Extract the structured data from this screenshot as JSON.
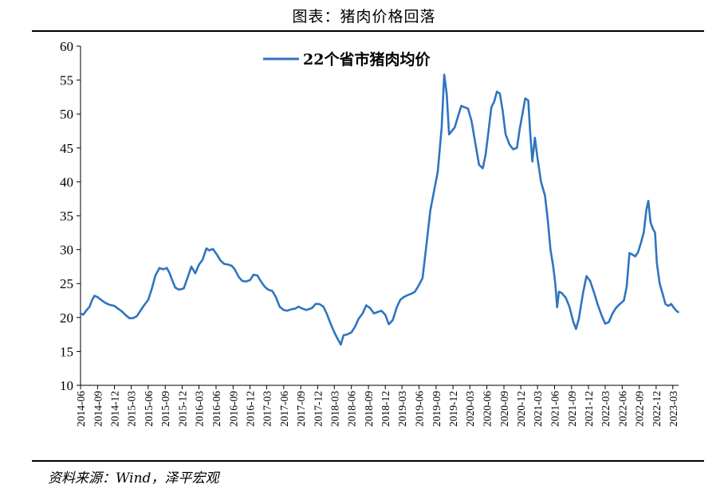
{
  "header": {
    "title": "图表：猪肉价格回落"
  },
  "footer": {
    "source": "资料来源：Wind，泽平宏观"
  },
  "chart_data": {
    "type": "line",
    "title": "",
    "xlabel": "",
    "ylabel": "",
    "ylim": [
      10,
      60
    ],
    "yticks": [
      10,
      15,
      20,
      25,
      30,
      35,
      40,
      45,
      50,
      55,
      60
    ],
    "xlim": [
      "2014-06",
      "2023-04"
    ],
    "xticks": [
      "2014-06",
      "2014-09",
      "2014-12",
      "2015-03",
      "2015-06",
      "2015-09",
      "2015-12",
      "2016-03",
      "2016-06",
      "2016-09",
      "2016-12",
      "2017-03",
      "2017-06",
      "2017-09",
      "2017-12",
      "2018-03",
      "2018-06",
      "2018-09",
      "2018-12",
      "2019-03",
      "2019-06",
      "2019-09",
      "2019-12",
      "2020-03",
      "2020-06",
      "2020-09",
      "2020-12",
      "2021-03",
      "2021-06",
      "2021-09",
      "2021-12",
      "2022-03",
      "2022-06",
      "2022-09",
      "2022-12",
      "2023-03"
    ],
    "legend_position": "top",
    "grid": false,
    "series": [
      {
        "name": "22个省市猪肉均价",
        "color": "#2e75c0",
        "points": [
          [
            "2014-06-01",
            20.6
          ],
          [
            "2014-06-15",
            20.4
          ],
          [
            "2014-07-01",
            21.0
          ],
          [
            "2014-07-20",
            21.6
          ],
          [
            "2014-08-01",
            22.5
          ],
          [
            "2014-08-15",
            23.2
          ],
          [
            "2014-09-01",
            23.0
          ],
          [
            "2014-09-20",
            22.6
          ],
          [
            "2014-10-10",
            22.2
          ],
          [
            "2014-11-01",
            21.9
          ],
          [
            "2014-12-01",
            21.7
          ],
          [
            "2014-12-20",
            21.3
          ],
          [
            "2015-01-10",
            20.9
          ],
          [
            "2015-02-01",
            20.3
          ],
          [
            "2015-02-20",
            19.9
          ],
          [
            "2015-03-10",
            19.9
          ],
          [
            "2015-04-01",
            20.2
          ],
          [
            "2015-04-20",
            21.0
          ],
          [
            "2015-05-10",
            21.8
          ],
          [
            "2015-06-01",
            22.6
          ],
          [
            "2015-06-20",
            24.2
          ],
          [
            "2015-07-10",
            26.2
          ],
          [
            "2015-08-01",
            27.3
          ],
          [
            "2015-08-20",
            27.1
          ],
          [
            "2015-09-10",
            27.3
          ],
          [
            "2015-09-25",
            26.5
          ],
          [
            "2015-10-10",
            25.4
          ],
          [
            "2015-10-25",
            24.4
          ],
          [
            "2015-11-15",
            24.1
          ],
          [
            "2015-12-10",
            24.3
          ],
          [
            "2016-01-01",
            26.0
          ],
          [
            "2016-01-20",
            27.5
          ],
          [
            "2016-02-10",
            26.5
          ],
          [
            "2016-03-01",
            27.8
          ],
          [
            "2016-03-20",
            28.5
          ],
          [
            "2016-04-10",
            30.2
          ],
          [
            "2016-04-25",
            29.9
          ],
          [
            "2016-05-15",
            30.1
          ],
          [
            "2016-06-05",
            29.3
          ],
          [
            "2016-06-25",
            28.4
          ],
          [
            "2016-07-15",
            27.9
          ],
          [
            "2016-08-05",
            27.8
          ],
          [
            "2016-08-25",
            27.6
          ],
          [
            "2016-09-10",
            27.1
          ],
          [
            "2016-10-01",
            26.0
          ],
          [
            "2016-10-20",
            25.4
          ],
          [
            "2016-11-10",
            25.3
          ],
          [
            "2016-12-01",
            25.5
          ],
          [
            "2016-12-20",
            26.3
          ],
          [
            "2017-01-10",
            26.2
          ],
          [
            "2017-02-01",
            25.2
          ],
          [
            "2017-02-20",
            24.5
          ],
          [
            "2017-03-10",
            24.1
          ],
          [
            "2017-04-01",
            23.9
          ],
          [
            "2017-04-20",
            23.0
          ],
          [
            "2017-05-10",
            21.6
          ],
          [
            "2017-06-01",
            21.1
          ],
          [
            "2017-06-20",
            21.0
          ],
          [
            "2017-07-10",
            21.2
          ],
          [
            "2017-08-01",
            21.3
          ],
          [
            "2017-08-20",
            21.6
          ],
          [
            "2017-09-10",
            21.3
          ],
          [
            "2017-10-01",
            21.1
          ],
          [
            "2017-11-01",
            21.4
          ],
          [
            "2017-11-20",
            22.0
          ],
          [
            "2017-12-10",
            22.0
          ],
          [
            "2018-01-01",
            21.6
          ],
          [
            "2018-01-20",
            20.5
          ],
          [
            "2018-02-10",
            19.0
          ],
          [
            "2018-03-01",
            17.8
          ],
          [
            "2018-03-20",
            16.8
          ],
          [
            "2018-04-05",
            16.0
          ],
          [
            "2018-04-20",
            17.4
          ],
          [
            "2018-05-10",
            17.5
          ],
          [
            "2018-06-01",
            17.8
          ],
          [
            "2018-06-20",
            18.6
          ],
          [
            "2018-07-10",
            19.8
          ],
          [
            "2018-08-01",
            20.6
          ],
          [
            "2018-08-20",
            21.8
          ],
          [
            "2018-09-10",
            21.4
          ],
          [
            "2018-10-01",
            20.6
          ],
          [
            "2018-10-20",
            20.8
          ],
          [
            "2018-11-10",
            21.0
          ],
          [
            "2018-12-01",
            20.4
          ],
          [
            "2018-12-20",
            19.0
          ],
          [
            "2019-01-10",
            19.6
          ],
          [
            "2019-02-01",
            21.5
          ],
          [
            "2019-02-20",
            22.6
          ],
          [
            "2019-03-10",
            23.0
          ],
          [
            "2019-04-01",
            23.3
          ],
          [
            "2019-04-20",
            23.5
          ],
          [
            "2019-05-10",
            23.8
          ],
          [
            "2019-06-01",
            24.8
          ],
          [
            "2019-06-20",
            25.8
          ],
          [
            "2019-07-10",
            30.5
          ],
          [
            "2019-08-01",
            35.8
          ],
          [
            "2019-08-20",
            38.5
          ],
          [
            "2019-09-10",
            41.5
          ],
          [
            "2019-10-01",
            48.0
          ],
          [
            "2019-10-15",
            55.8
          ],
          [
            "2019-10-28",
            53.0
          ],
          [
            "2019-11-10",
            47.0
          ],
          [
            "2019-11-25",
            47.5
          ],
          [
            "2019-12-10",
            48.0
          ],
          [
            "2020-01-01",
            50.0
          ],
          [
            "2020-01-15",
            51.2
          ],
          [
            "2020-02-01",
            51.0
          ],
          [
            "2020-02-20",
            50.8
          ],
          [
            "2020-03-10",
            49.0
          ],
          [
            "2020-04-01",
            45.5
          ],
          [
            "2020-04-20",
            42.5
          ],
          [
            "2020-05-10",
            42.0
          ],
          [
            "2020-05-25",
            44.0
          ],
          [
            "2020-06-10",
            47.5
          ],
          [
            "2020-06-25",
            51.0
          ],
          [
            "2020-07-10",
            51.8
          ],
          [
            "2020-07-25",
            53.3
          ],
          [
            "2020-08-10",
            53.0
          ],
          [
            "2020-08-25",
            50.5
          ],
          [
            "2020-09-10",
            47.0
          ],
          [
            "2020-10-01",
            45.5
          ],
          [
            "2020-10-20",
            44.8
          ],
          [
            "2020-11-10",
            45.0
          ],
          [
            "2020-11-25",
            47.8
          ],
          [
            "2020-12-10",
            50.0
          ],
          [
            "2020-12-25",
            52.3
          ],
          [
            "2021-01-10",
            52.0
          ],
          [
            "2021-01-20",
            47.5
          ],
          [
            "2021-02-01",
            43.0
          ],
          [
            "2021-02-15",
            46.5
          ],
          [
            "2021-03-01",
            43.5
          ],
          [
            "2021-03-20",
            40.0
          ],
          [
            "2021-04-10",
            38.0
          ],
          [
            "2021-04-25",
            34.5
          ],
          [
            "2021-05-10",
            30.0
          ],
          [
            "2021-05-25",
            27.5
          ],
          [
            "2021-06-05",
            25.0
          ],
          [
            "2021-06-15",
            21.5
          ],
          [
            "2021-06-25",
            23.8
          ],
          [
            "2021-07-10",
            23.6
          ],
          [
            "2021-08-01",
            22.9
          ],
          [
            "2021-08-20",
            21.6
          ],
          [
            "2021-09-10",
            19.4
          ],
          [
            "2021-09-25",
            18.3
          ],
          [
            "2021-10-10",
            19.8
          ],
          [
            "2021-11-01",
            23.5
          ],
          [
            "2021-11-20",
            26.1
          ],
          [
            "2021-12-10",
            25.4
          ],
          [
            "2022-01-01",
            23.6
          ],
          [
            "2022-01-20",
            21.9
          ],
          [
            "2022-02-10",
            20.3
          ],
          [
            "2022-03-01",
            19.1
          ],
          [
            "2022-03-20",
            19.3
          ],
          [
            "2022-04-10",
            20.6
          ],
          [
            "2022-05-01",
            21.5
          ],
          [
            "2022-05-20",
            22.0
          ],
          [
            "2022-06-10",
            22.5
          ],
          [
            "2022-06-25",
            24.5
          ],
          [
            "2022-07-10",
            29.5
          ],
          [
            "2022-07-25",
            29.3
          ],
          [
            "2022-08-10",
            29.0
          ],
          [
            "2022-08-25",
            29.6
          ],
          [
            "2022-09-10",
            31.0
          ],
          [
            "2022-09-25",
            32.5
          ],
          [
            "2022-10-10",
            36.0
          ],
          [
            "2022-10-20",
            37.2
          ],
          [
            "2022-11-01",
            34.0
          ],
          [
            "2022-11-15",
            33.0
          ],
          [
            "2022-11-25",
            32.5
          ],
          [
            "2022-12-05",
            28.0
          ],
          [
            "2022-12-20",
            25.0
          ],
          [
            "2023-01-05",
            23.5
          ],
          [
            "2023-01-20",
            22.0
          ],
          [
            "2023-02-05",
            21.7
          ],
          [
            "2023-02-20",
            22.0
          ],
          [
            "2023-03-05",
            21.5
          ],
          [
            "2023-03-20",
            21.0
          ],
          [
            "2023-03-30",
            20.8
          ]
        ]
      }
    ]
  }
}
